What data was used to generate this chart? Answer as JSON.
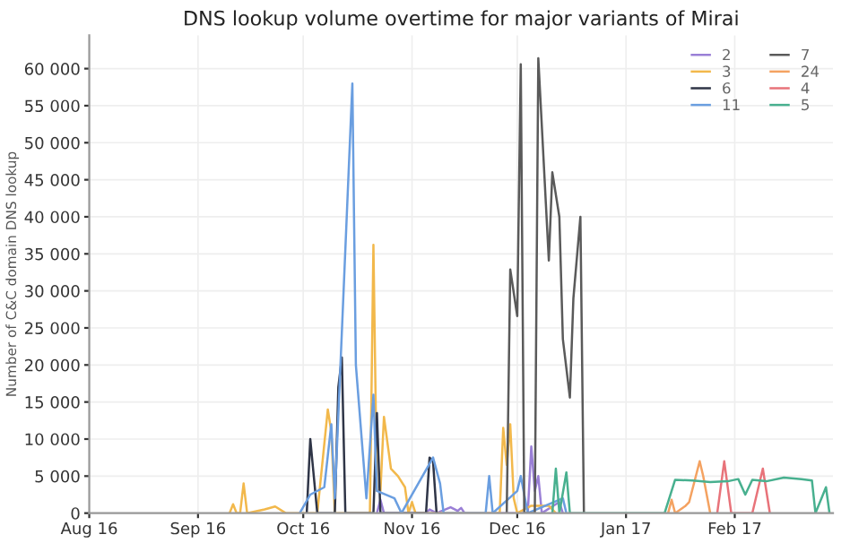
{
  "chart_data": {
    "type": "line",
    "title": "DNS lookup volume overtime for major variants of Mirai",
    "ylabel": "Number of C&C domain DNS lookup",
    "xlim": [
      "2016-08-01",
      "2017-03-01"
    ],
    "xticks": [
      {
        "value": "2016-08-01",
        "label": "Aug 16"
      },
      {
        "value": "2016-09-01",
        "label": "Sep 16"
      },
      {
        "value": "2016-10-01",
        "label": "Oct 16"
      },
      {
        "value": "2016-11-01",
        "label": "Nov 16"
      },
      {
        "value": "2016-12-01",
        "label": "Dec 16"
      },
      {
        "value": "2017-01-01",
        "label": "Jan 17"
      },
      {
        "value": "2017-02-01",
        "label": "Feb 17"
      }
    ],
    "ylim": [
      0,
      64500
    ],
    "yticks": [
      0,
      {
        "value": 5000,
        "label": "5 000"
      },
      {
        "value": 10000,
        "label": "10 000"
      },
      {
        "value": 15000,
        "label": "15 000"
      },
      {
        "value": 20000,
        "label": "20 000"
      },
      {
        "value": 25000,
        "label": "25 000"
      },
      {
        "value": 30000,
        "label": "30 000"
      },
      {
        "value": 35000,
        "label": "35 000"
      },
      {
        "value": 40000,
        "label": "40 000"
      },
      {
        "value": 45000,
        "label": "45 000"
      },
      {
        "value": 50000,
        "label": "50 000"
      },
      {
        "value": 55000,
        "label": "55 000"
      },
      {
        "value": 60000,
        "label": "60 000"
      }
    ],
    "grid": true,
    "legend": "top right",
    "marker": "none",
    "line_style": "solid",
    "series": [
      {
        "name": "2",
        "color": "#9a7fd6",
        "x": [
          "2016-10-22",
          "2016-10-23",
          "2016-10-24",
          "2016-11-05",
          "2016-11-06",
          "2016-11-08",
          "2016-11-12",
          "2016-11-14",
          "2016-11-15",
          "2016-11-16",
          "2016-12-04",
          "2016-12-05",
          "2016-12-06",
          "2016-12-07",
          "2016-12-08",
          "2016-12-13",
          "2016-12-14"
        ],
        "values": [
          0,
          1800,
          0,
          0,
          500,
          0,
          800,
          300,
          700,
          0,
          0,
          9000,
          3000,
          5000,
          0,
          1500,
          0
        ]
      },
      {
        "name": "3",
        "color": "#f2b84b",
        "x": [
          "2016-09-10",
          "2016-09-11",
          "2016-09-12",
          "2016-09-13",
          "2016-09-14",
          "2016-09-15",
          "2016-09-20",
          "2016-09-23",
          "2016-09-26",
          "2016-10-05",
          "2016-10-08",
          "2016-10-09",
          "2016-10-10",
          "2016-10-20",
          "2016-10-21",
          "2016-10-22",
          "2016-10-23",
          "2016-10-24",
          "2016-10-26",
          "2016-10-28",
          "2016-10-30",
          "2016-10-31",
          "2016-11-01",
          "2016-11-02",
          "2016-11-26",
          "2016-11-27",
          "2016-11-28",
          "2016-11-29",
          "2016-11-30",
          "2016-12-01",
          "2016-12-05",
          "2016-12-10",
          "2016-12-12"
        ],
        "values": [
          0,
          1200,
          0,
          0,
          4000,
          0,
          500,
          900,
          0,
          0,
          14000,
          11000,
          0,
          0,
          36200,
          3000,
          3000,
          13000,
          6000,
          5000,
          3500,
          0,
          1500,
          0,
          0,
          11500,
          6500,
          12000,
          2000,
          0,
          1000,
          1000,
          0
        ]
      },
      {
        "name": "6",
        "color": "#2f3547",
        "x": [
          "2016-10-02",
          "2016-10-03",
          "2016-10-04",
          "2016-10-05",
          "2016-10-10",
          "2016-10-11",
          "2016-10-12",
          "2016-10-13",
          "2016-10-21",
          "2016-10-22",
          "2016-10-23",
          "2016-11-05",
          "2016-11-06",
          "2016-11-07",
          "2016-11-08"
        ],
        "values": [
          0,
          10000,
          5000,
          0,
          0,
          17000,
          21000,
          0,
          0,
          13500,
          0,
          0,
          7500,
          7000,
          0
        ]
      },
      {
        "name": "11",
        "color": "#6a9ee0",
        "x": [
          "2016-09-30",
          "2016-10-03",
          "2016-10-07",
          "2016-10-09",
          "2016-10-10",
          "2016-10-15",
          "2016-10-16",
          "2016-10-18",
          "2016-10-19",
          "2016-10-21",
          "2016-10-22",
          "2016-10-27",
          "2016-10-29",
          "2016-11-07",
          "2016-11-09",
          "2016-11-10",
          "2016-11-22",
          "2016-11-23",
          "2016-11-24",
          "2016-12-01",
          "2016-12-02",
          "2016-12-04",
          "2016-12-14",
          "2016-12-15"
        ],
        "values": [
          0,
          2500,
          3500,
          12000,
          2000,
          58000,
          20000,
          8000,
          2000,
          16000,
          3000,
          2000,
          0,
          7500,
          4000,
          0,
          0,
          5000,
          0,
          3000,
          5000,
          0,
          2000,
          0
        ]
      },
      {
        "name": "7",
        "color": "#5a5a5a",
        "x": [
          "2016-11-28",
          "2016-11-29",
          "2016-12-01",
          "2016-12-02",
          "2016-12-03",
          "2016-12-06",
          "2016-12-07",
          "2016-12-10",
          "2016-12-11",
          "2016-12-13",
          "2016-12-14",
          "2016-12-16",
          "2016-12-17",
          "2016-12-19",
          "2016-12-20"
        ],
        "values": [
          0,
          32900,
          26600,
          60600,
          0,
          0,
          61400,
          34100,
          46000,
          40000,
          23500,
          15600,
          29000,
          40000,
          0
        ]
      },
      {
        "name": "24",
        "color": "#f4a261",
        "x": [
          "2017-01-13",
          "2017-01-14",
          "2017-01-15",
          "2017-01-18",
          "2017-01-19",
          "2017-01-22",
          "2017-01-23",
          "2017-01-25"
        ],
        "values": [
          0,
          1800,
          0,
          1000,
          1500,
          7000,
          5000,
          0
        ]
      },
      {
        "name": "4",
        "color": "#e8737a",
        "x": [
          "2017-01-27",
          "2017-01-29",
          "2017-01-31",
          "2017-02-06",
          "2017-02-09",
          "2017-02-11"
        ],
        "values": [
          0,
          7000,
          0,
          0,
          6000,
          0
        ]
      },
      {
        "name": "5",
        "color": "#48b08f",
        "x": [
          "2016-12-11",
          "2016-12-12",
          "2016-12-13",
          "2016-12-15",
          "2016-12-16",
          "2017-01-12",
          "2017-01-15",
          "2017-01-20",
          "2017-01-25",
          "2017-01-30",
          "2017-02-02",
          "2017-02-04",
          "2017-02-06",
          "2017-02-10",
          "2017-02-15",
          "2017-02-20",
          "2017-02-23",
          "2017-02-24",
          "2017-02-27",
          "2017-02-28"
        ],
        "values": [
          0,
          6000,
          0,
          5500,
          0,
          0,
          4500,
          4400,
          4200,
          4300,
          4600,
          2500,
          4500,
          4300,
          4800,
          4600,
          4400,
          0,
          3500,
          0
        ]
      }
    ]
  }
}
